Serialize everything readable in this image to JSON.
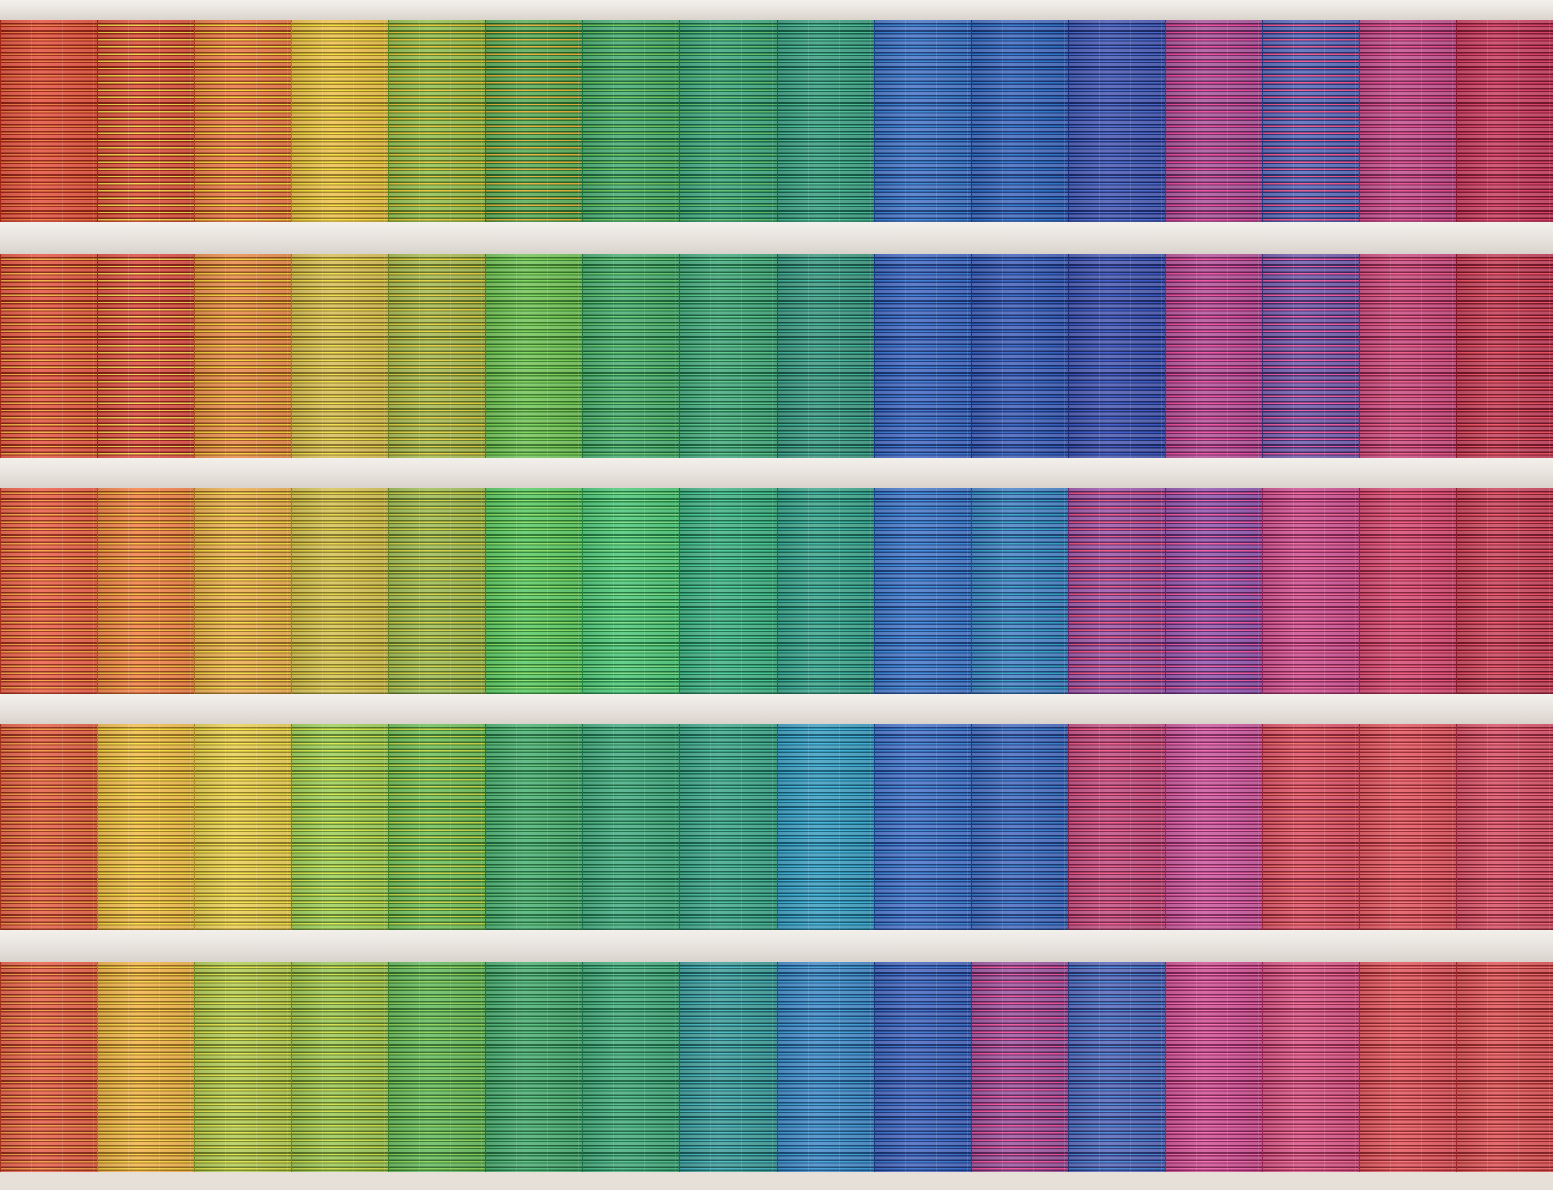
{
  "palette": [
    [
      "#e0351f",
      "#d8341e",
      "#e8622a",
      "#eab72f",
      "#82b532",
      "#3d9f3d",
      "#2a9f5e",
      "#1f9a6c",
      "#1e8f6e",
      "#2a5fbf",
      "#2452b5",
      "#2a3fa8",
      "#9b3a8c",
      "#3a4fb0",
      "#b8357c",
      "#c02348"
    ],
    [
      "#e03a22",
      "#d63124",
      "#e6792c",
      "#d2b43a",
      "#9ab035",
      "#5cbb3f",
      "#2ea25c",
      "#269b68",
      "#21886e",
      "#2651b8",
      "#2548b0",
      "#2c3fa5",
      "#a8368a",
      "#5a3f9e",
      "#c2306c",
      "#b8213f"
    ],
    [
      "#e8452a",
      "#ef6d2a",
      "#e9a235",
      "#cfb93a",
      "#8fb23a",
      "#3fc24a",
      "#2fbf63",
      "#25a670",
      "#21977a",
      "#2a63c2",
      "#2a6fbe",
      "#8c3b9a",
      "#7f3aa0",
      "#c73580",
      "#d0305f",
      "#c02843"
    ],
    [
      "#e24628",
      "#f0b22e",
      "#e8c83a",
      "#8ec83f",
      "#58b53f",
      "#2ea55e",
      "#27a06e",
      "#239a7a",
      "#1f8fb8",
      "#2c5ec4",
      "#2a55b8",
      "#b8336e",
      "#c23c8e",
      "#d9364f",
      "#df3a45",
      "#d23550"
    ],
    [
      "#e4472c",
      "#f0a82d",
      "#a8c43a",
      "#8dbf3c",
      "#4fb146",
      "#31a25d",
      "#2aa06a",
      "#238e8c",
      "#2778c0",
      "#2a4fb5",
      "#8e3a8f",
      "#3c4fb0",
      "#c83583",
      "#d43a72",
      "#df3b45",
      "#da3a3d"
    ]
  ],
  "stripes": [
    [
      "#f07a45",
      "#f0d34a",
      "#f4d63a",
      "#f5e23c",
      "#e8c83a",
      "#e6b23a",
      "#6ec65a",
      "#62c26f",
      "#4ec29a",
      "#3a87d6",
      "#2f7ad0",
      "#4a6ed0",
      "#f04a9c",
      "#f0558e",
      "#e84f8e",
      "#e0456e"
    ],
    [
      "#f0b248",
      "#f3cf52",
      "#f4d13e",
      "#f1df48",
      "#e5d244",
      "#7ad65a",
      "#63cb73",
      "#5ac88a",
      "#45b9a0",
      "#3c7cd6",
      "#3468c8",
      "#3a5dcc",
      "#f0509e",
      "#ef5aa0",
      "#f05c86",
      "#f05463"
    ],
    [
      "#f6a648",
      "#f5c044",
      "#f7df46",
      "#e8d545",
      "#d7d448",
      "#8fe06a",
      "#7ee38a",
      "#4bcf9a",
      "#3eb8a8",
      "#3c8ee0",
      "#36a6c8",
      "#f0557e",
      "#f25b9f",
      "#f2699c",
      "#f25a7c",
      "#ef5669"
    ],
    [
      "#f39a4a",
      "#fbe247",
      "#f9e94a",
      "#dbe94f",
      "#cbd84a",
      "#62c27b",
      "#56bd8a",
      "#4bbd9a",
      "#42b8e0",
      "#3f8bd8",
      "#3c83d3",
      "#f25c88",
      "#f36ab2",
      "#f5706e",
      "#f6707a",
      "#f36a7f"
    ],
    [
      "#f39d4c",
      "#f8d54a",
      "#e4e44e",
      "#d4e04b",
      "#8fd45e",
      "#57bf7f",
      "#52be8d",
      "#4ab9c4",
      "#45a2dc",
      "#3e79d3",
      "#f0559e",
      "#4a8ad9",
      "#f36baf",
      "#f56e95",
      "#f67072",
      "#f56e6e"
    ]
  ]
}
